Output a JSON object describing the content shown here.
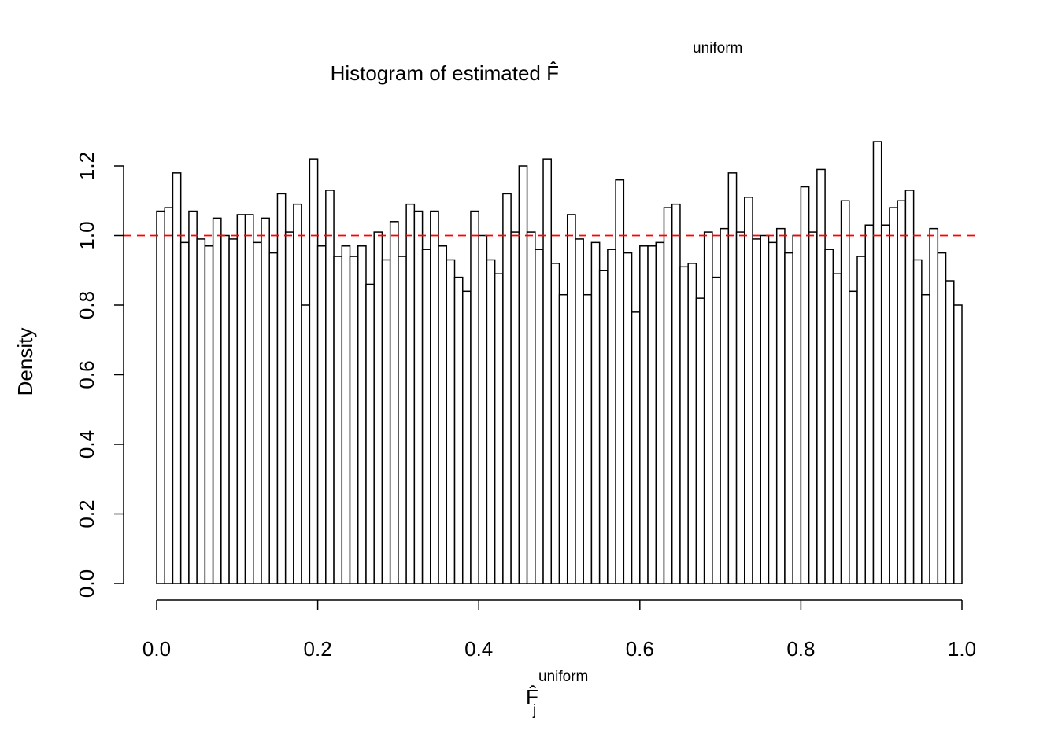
{
  "chart_data": {
    "type": "histogram",
    "title": "Histogram of estimated F̂",
    "title_superscript": "uniform",
    "xlabel": "F̂",
    "xlabel_subscript": "j",
    "xlabel_superscript": "uniform",
    "ylabel": "Density",
    "bins": [
      0,
      0.01,
      0.02,
      0.03,
      0.04,
      0.05,
      0.06,
      0.07,
      0.08,
      0.09,
      0.1,
      0.11,
      0.12,
      0.13,
      0.14,
      0.15,
      0.16,
      0.17,
      0.18,
      0.19,
      0.2,
      0.21,
      0.22,
      0.23,
      0.24,
      0.25,
      0.26,
      0.27,
      0.28,
      0.29,
      0.3,
      0.31,
      0.32,
      0.33,
      0.34,
      0.35,
      0.36,
      0.37,
      0.38,
      0.39,
      0.4,
      0.41,
      0.42,
      0.43,
      0.44,
      0.45,
      0.46,
      0.47,
      0.48,
      0.49,
      0.5,
      0.51,
      0.52,
      0.53,
      0.54,
      0.55,
      0.56,
      0.57,
      0.58,
      0.59,
      0.6,
      0.61,
      0.62,
      0.63,
      0.64,
      0.65,
      0.66,
      0.67,
      0.68,
      0.69,
      0.7,
      0.71,
      0.72,
      0.73,
      0.74,
      0.75,
      0.76,
      0.77,
      0.78,
      0.79,
      0.8,
      0.81,
      0.82,
      0.83,
      0.84,
      0.85,
      0.86,
      0.87,
      0.88,
      0.89,
      0.9,
      0.91,
      0.92,
      0.93,
      0.94,
      0.95,
      0.96,
      0.97,
      0.98,
      0.99,
      1
    ],
    "values": [
      1.07,
      1.08,
      1.18,
      0.98,
      1.07,
      0.99,
      0.97,
      1.05,
      1.0,
      0.99,
      1.06,
      1.06,
      0.98,
      1.05,
      0.95,
      1.12,
      1.01,
      1.09,
      0.8,
      1.22,
      0.97,
      1.13,
      0.94,
      0.97,
      0.94,
      0.97,
      0.86,
      1.01,
      0.93,
      1.04,
      0.94,
      1.09,
      1.07,
      0.96,
      1.07,
      0.97,
      0.93,
      0.88,
      0.84,
      1.07,
      1.0,
      0.93,
      0.89,
      1.12,
      1.01,
      1.2,
      1.01,
      0.96,
      1.22,
      0.92,
      0.83,
      1.06,
      0.99,
      0.83,
      0.98,
      0.9,
      0.96,
      1.16,
      0.95,
      0.78,
      0.97,
      0.97,
      0.98,
      1.08,
      1.09,
      0.91,
      0.92,
      0.82,
      1.01,
      0.88,
      1.02,
      1.18,
      1.01,
      1.11,
      0.99,
      1.0,
      0.98,
      1.02,
      0.95,
      1.0,
      1.14,
      1.01,
      1.19,
      0.96,
      0.89,
      1.1,
      0.84,
      0.94,
      1.03,
      1.27,
      1.03,
      1.08,
      1.1,
      1.13,
      0.93,
      0.83,
      1.02,
      0.95,
      0.87,
      0.8
    ],
    "color": "#ffffff",
    "edge_color": "#000000",
    "hline": 1,
    "hline_color": "#ff0000",
    "xlim": [
      0,
      1
    ],
    "xticks": [
      {
        "value": 0,
        "label": "0.0"
      },
      {
        "value": 0.2,
        "label": "0.2"
      },
      {
        "value": 0.4,
        "label": "0.4"
      },
      {
        "value": 0.6,
        "label": "0.6"
      },
      {
        "value": 0.8,
        "label": "0.8"
      },
      {
        "value": 1,
        "label": "1.0"
      }
    ],
    "ylim": [
      0,
      1.2
    ],
    "yticks": [
      {
        "value": 0,
        "label": "0.0"
      },
      {
        "value": 0.2,
        "label": "0.2"
      },
      {
        "value": 0.4,
        "label": "0.4"
      },
      {
        "value": 0.6,
        "label": "0.6"
      },
      {
        "value": 0.8,
        "label": "0.8"
      },
      {
        "value": 1,
        "label": "1.0"
      },
      {
        "value": 1.2,
        "label": "1.2"
      }
    ]
  }
}
